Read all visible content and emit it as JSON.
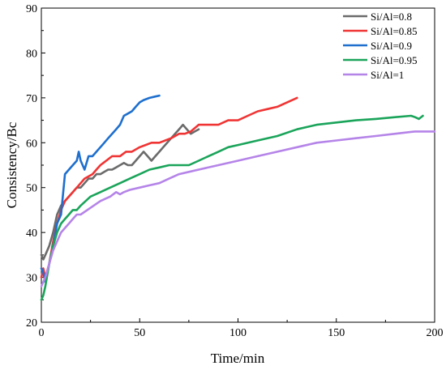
{
  "chart_data": {
    "type": "line",
    "title": "",
    "xlabel": "Time/min",
    "ylabel": "Consistency/Bc",
    "xlim": [
      0,
      200
    ],
    "ylim": [
      20,
      90
    ],
    "xticks": [
      0,
      50,
      100,
      150,
      200
    ],
    "yticks": [
      20,
      30,
      40,
      50,
      60,
      70,
      80,
      90
    ],
    "grid": false,
    "legend_position": "top-right",
    "series": [
      {
        "name": "Si/Al=0.8",
        "color": "#6b6b6b",
        "x": [
          0,
          1,
          2,
          4,
          6,
          8,
          10,
          12,
          14,
          16,
          18,
          20,
          22,
          24,
          26,
          28,
          30,
          32,
          34,
          36,
          38,
          40,
          42,
          44,
          46,
          48,
          50,
          52,
          54,
          56,
          58,
          60,
          62,
          64,
          66,
          68,
          70,
          72,
          74,
          76,
          78,
          80
        ],
        "values": [
          35,
          34,
          35,
          37,
          40,
          44,
          46,
          47,
          48,
          49,
          50,
          50,
          51,
          52,
          52,
          53,
          53,
          53.5,
          54,
          54,
          54.5,
          55,
          55.5,
          55,
          55,
          56,
          57,
          58,
          57,
          56,
          57,
          58,
          59,
          60,
          61,
          62,
          63,
          64,
          63,
          62,
          62.5,
          63
        ]
      },
      {
        "name": "Si/Al=0.85",
        "color": "#f03434",
        "x": [
          0,
          1,
          2,
          4,
          6,
          8,
          10,
          12,
          14,
          16,
          18,
          20,
          22,
          24,
          26,
          28,
          30,
          33,
          36,
          40,
          43,
          46,
          50,
          53,
          56,
          60,
          63,
          66,
          70,
          73,
          76,
          80,
          85,
          90,
          95,
          100,
          105,
          110,
          115,
          120,
          125,
          130
        ],
        "values": [
          30,
          32,
          30,
          33,
          38,
          42,
          45,
          47,
          48,
          49,
          50,
          51,
          52,
          52.5,
          53,
          54,
          55,
          56,
          57,
          57,
          58,
          58,
          59,
          59.5,
          60,
          60,
          60.5,
          61,
          62,
          62,
          62.5,
          64,
          64,
          64,
          65,
          65,
          66,
          67,
          67.5,
          68,
          69,
          70
        ]
      },
      {
        "name": "Si/Al=0.9",
        "color": "#1e6fce",
        "x": [
          0,
          1,
          2,
          4,
          6,
          8,
          10,
          12,
          14,
          16,
          18,
          19,
          20,
          22,
          24,
          26,
          28,
          30,
          32,
          34,
          36,
          38,
          40,
          42,
          44,
          46,
          48,
          50,
          52,
          55,
          58,
          60
        ],
        "values": [
          32,
          31,
          29,
          33,
          37,
          42,
          44,
          53,
          54,
          55,
          56,
          58,
          56,
          54,
          57,
          57,
          58,
          59,
          60,
          61,
          62,
          63,
          64,
          66,
          66.5,
          67,
          68,
          69,
          69.5,
          70,
          70.3,
          70.5
        ]
      },
      {
        "name": "Si/Al=0.95",
        "color": "#1aa45a",
        "x": [
          0,
          1,
          2,
          4,
          6,
          8,
          10,
          12,
          14,
          16,
          18,
          20,
          25,
          30,
          35,
          40,
          45,
          50,
          55,
          60,
          65,
          70,
          75,
          80,
          85,
          90,
          95,
          100,
          110,
          120,
          130,
          140,
          150,
          160,
          170,
          180,
          188,
          190,
          192,
          194
        ],
        "values": [
          25,
          26,
          28,
          33,
          37,
          40,
          42,
          43,
          44,
          45,
          45,
          46,
          48,
          49,
          50,
          51,
          52,
          53,
          54,
          54.5,
          55,
          55,
          55,
          56,
          57,
          58,
          59,
          59.5,
          60.5,
          61.5,
          63,
          64,
          64.5,
          65,
          65.3,
          65.7,
          66,
          65.7,
          65.3,
          66
        ]
      },
      {
        "name": "Si/Al=1",
        "color": "#b584e8",
        "x": [
          0,
          1,
          2,
          4,
          6,
          8,
          10,
          12,
          14,
          16,
          18,
          20,
          25,
          30,
          35,
          38,
          40,
          42,
          45,
          50,
          55,
          60,
          65,
          70,
          75,
          80,
          90,
          100,
          110,
          120,
          130,
          140,
          150,
          160,
          170,
          180,
          190,
          200
        ],
        "values": [
          28,
          29,
          30,
          33,
          36,
          38,
          40,
          41,
          42,
          43,
          44,
          44,
          45.5,
          47,
          48,
          49,
          48.5,
          49,
          49.5,
          50,
          50.5,
          51,
          52,
          53,
          53.5,
          54,
          55,
          56,
          57,
          58,
          59,
          60,
          60.5,
          61,
          61.5,
          62,
          62.5,
          62.5
        ]
      }
    ]
  }
}
